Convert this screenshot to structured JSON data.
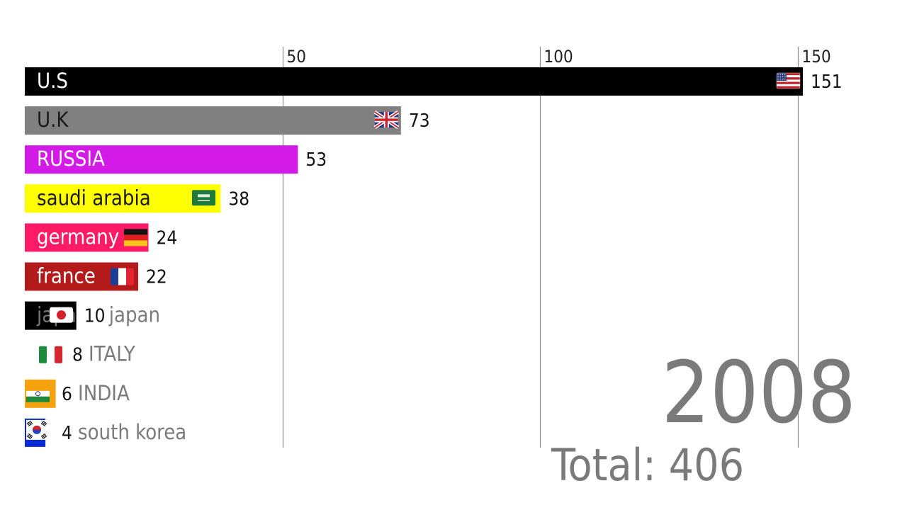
{
  "chart_data": {
    "type": "bar",
    "orientation": "horizontal",
    "title": "",
    "xlabel": "",
    "ylabel": "",
    "xlim": [
      0,
      151
    ],
    "ticks": [
      50,
      100,
      150
    ],
    "grid": true,
    "legend": "none",
    "year": "2008",
    "total_label": "Total: 406",
    "categories": [
      "U.S",
      "U.K",
      "RUSSIA",
      "saudi arabia",
      "germany",
      "france",
      "japan",
      "ITALY",
      "INDIA",
      "south korea"
    ],
    "values": [
      151,
      73,
      53,
      38,
      24,
      22,
      10,
      8,
      6,
      4
    ],
    "value_labels": [
      "151",
      "73",
      "53",
      "38",
      "24",
      "22",
      "10",
      "8",
      "6",
      "4"
    ],
    "bars": [
      {
        "name": "U.S",
        "value": 151,
        "color": "#000000",
        "label_color": "#ffffff",
        "flag": "usa-flag-icon"
      },
      {
        "name": "U.K",
        "value": 73,
        "color": "#808080",
        "label_color": "#1a1a1a",
        "flag": "uk-flag-icon"
      },
      {
        "name": "RUSSIA",
        "value": 53,
        "color": "#d41ae6",
        "label_color": "#ffffff",
        "flag": ""
      },
      {
        "name": "saudi arabia",
        "value": 38,
        "color": "#ffff00",
        "label_color": "#1a1a1a",
        "flag": "saudi-arabia-flag-icon"
      },
      {
        "name": "germany",
        "value": 24,
        "color": "#ff1a66",
        "label_color": "#ffffff",
        "flag": "germany-flag-icon"
      },
      {
        "name": "france",
        "value": 22,
        "color": "#b31b1b",
        "label_color": "#ffffff",
        "flag": "france-flag-icon"
      },
      {
        "name": "japan",
        "value": 10,
        "color": "#000000",
        "label_color": "#7a7a7a",
        "flag": "japan-flag-icon"
      },
      {
        "name": "ITALY",
        "value": 8,
        "color": "#ffffff",
        "label_color": "#7a7a7a",
        "flag": "italy-flag-icon"
      },
      {
        "name": "INDIA",
        "value": 6,
        "color": "#f5a20f",
        "label_color": "#7a7a7a",
        "flag": "india-flag-icon"
      },
      {
        "name": "south korea",
        "value": 4,
        "color": "#0a2ad6",
        "label_color": "#7a7a7a",
        "flag": "south-korea-flag-icon"
      }
    ]
  }
}
